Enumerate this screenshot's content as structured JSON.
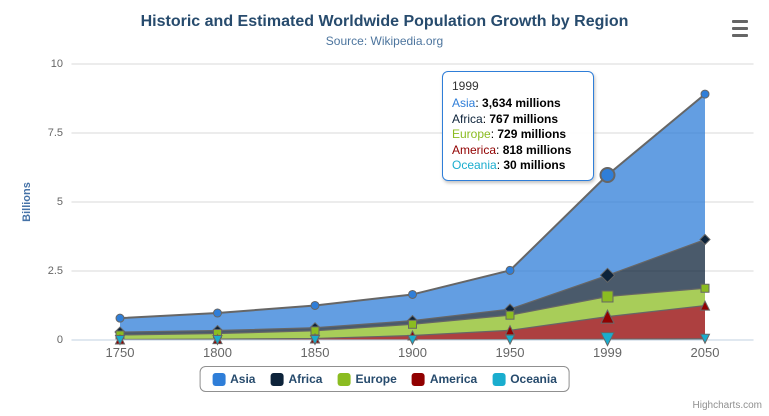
{
  "chart_data": {
    "type": "area",
    "stacking": "normal",
    "title": "Historic and Estimated Worldwide Population Growth by Region",
    "subtitle": "Source: Wikipedia.org",
    "ylabel": "Billions",
    "unit": "millions",
    "categories": [
      "1750",
      "1800",
      "1850",
      "1900",
      "1950",
      "1999",
      "2050"
    ],
    "yticks": [
      "0",
      "2.5",
      "5",
      "7.5",
      "10"
    ],
    "ytick_values_billions": [
      0,
      2.5,
      5,
      7.5,
      10
    ],
    "ylim": [
      0,
      10
    ],
    "grid": true,
    "legend_position": "bottom",
    "series": [
      {
        "name": "Asia",
        "color": "#2f7ed8",
        "marker": "circle",
        "values_millions": [
          502,
          635,
          809,
          947,
          1402,
          3634,
          5268
        ]
      },
      {
        "name": "Africa",
        "color": "#0d233a",
        "marker": "diamond",
        "values_millions": [
          106,
          107,
          111,
          133,
          221,
          767,
          1766
        ]
      },
      {
        "name": "Europe",
        "color": "#8bbc21",
        "marker": "square",
        "values_millions": [
          163,
          203,
          276,
          408,
          547,
          729,
          628
        ]
      },
      {
        "name": "America",
        "color": "#910000",
        "marker": "triangle",
        "values_millions": [
          18,
          31,
          54,
          156,
          339,
          818,
          1201
        ]
      },
      {
        "name": "Oceania",
        "color": "#1aadce",
        "marker": "triangle-down",
        "values_millions": [
          2,
          2,
          2,
          6,
          13,
          30,
          46
        ]
      }
    ],
    "stack_order_bottom_to_top": [
      "Oceania",
      "America",
      "Europe",
      "Africa",
      "Asia"
    ],
    "hovered_category_index": 5
  },
  "tooltip": {
    "header": "1999",
    "rows": [
      {
        "name": "Asia",
        "value": "3,634 millions"
      },
      {
        "name": "Africa",
        "value": "767 millions"
      },
      {
        "name": "Europe",
        "value": "729 millions"
      },
      {
        "name": "America",
        "value": "818 millions"
      },
      {
        "name": "Oceania",
        "value": "30 millions"
      }
    ]
  },
  "credit": "Highcharts.com",
  "colors": {
    "title": "#274b6d",
    "subtitle": "#4d759e",
    "axis_label": "#666666",
    "y_axis_title": "#4572a7",
    "gridline": "#d8d8d8",
    "axis_line": "#c0d0e0",
    "series_outline": "#666666",
    "legend_border": "#909090",
    "tooltip_border": "#2f7ed8"
  }
}
